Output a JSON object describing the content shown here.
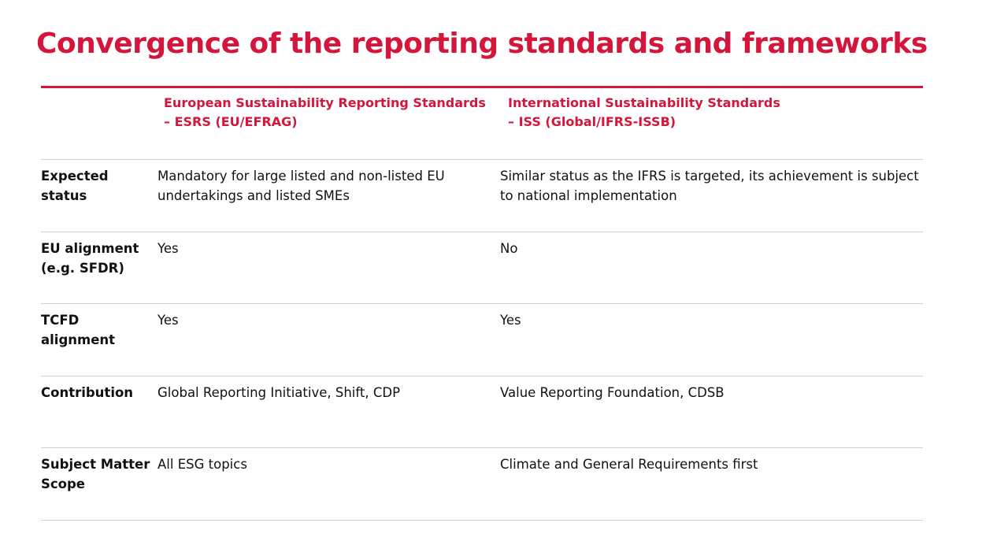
{
  "title": "Convergence of the reporting standards and frameworks",
  "columns": {
    "esrs": {
      "line1": "European Sustainability Reporting Standards",
      "line2": "– ESRS (EU/EFRAG)"
    },
    "iss": {
      "line1": "International Sustainability Standards",
      "line2": "– ISS (Global/IFRS-ISSB)"
    }
  },
  "rows": [
    {
      "label": "Expected status",
      "esrs": "Mandatory for large listed and non-listed EU undertakings and listed SMEs",
      "iss": "Similar status as the IFRS is targeted, its achievement is subject to national implementation"
    },
    {
      "label": "EU alignment (e.g. SFDR)",
      "esrs": "Yes",
      "iss": "No"
    },
    {
      "label": "TCFD alignment",
      "esrs": "Yes",
      "iss": "Yes"
    },
    {
      "label": "Contribution",
      "esrs": "Global Reporting Initiative, Shift, CDP",
      "iss": "Value Reporting Foundation, CDSB"
    },
    {
      "label": "Subject Matter Scope",
      "esrs": "All ESG topics",
      "iss": "Climate and General Requirements first"
    }
  ]
}
